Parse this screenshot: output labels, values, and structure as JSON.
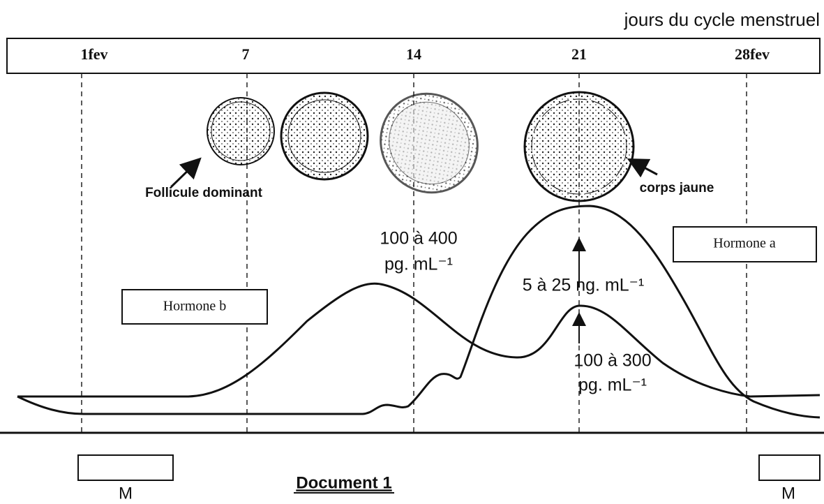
{
  "header": {
    "axis_title": "jours du cycle menstruel",
    "days": [
      "1fev",
      "7",
      "14",
      "21",
      "28fev"
    ]
  },
  "labels": {
    "follicle": "Follicule dominant",
    "corpus": "corps jaune",
    "hormone_b_range": "100 à 400",
    "hormone_b_unit": "pg. mL⁻¹",
    "hormone_a_range": "5 à 25 ng. mL⁻¹",
    "hormone_b_second_range": "100 à 300",
    "hormone_b_second_unit": "pg. mL⁻¹"
  },
  "legend": {
    "hormone_a": "Hormone a",
    "hormone_b": "Hormone b"
  },
  "menstruation": [
    "M",
    "M"
  ],
  "caption": "Document 1"
}
